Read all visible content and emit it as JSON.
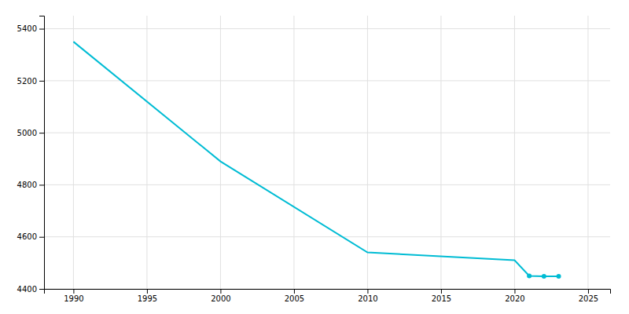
{
  "chart_data": {
    "type": "line",
    "x": [
      1990,
      2000,
      2010,
      2020,
      2021,
      2022,
      2023
    ],
    "series": [
      {
        "color": "#00bcd4",
        "values": [
          5350,
          4890,
          4540,
          4510,
          4450,
          4448,
          4448
        ]
      },
      {
        "type": "scatter",
        "marker": "circle",
        "color": "#00bcd4",
        "values": [
          null,
          null,
          null,
          null,
          4450,
          4448,
          4448
        ]
      }
    ],
    "xlim": [
      1988,
      2026.5
    ],
    "ylim": [
      4400,
      5450
    ],
    "xticks": [
      1990,
      1995,
      2000,
      2005,
      2010,
      2015,
      2020,
      2025
    ],
    "yticks": [
      4400,
      4600,
      4800,
      5000,
      5200,
      5400
    ],
    "grid": true
  }
}
